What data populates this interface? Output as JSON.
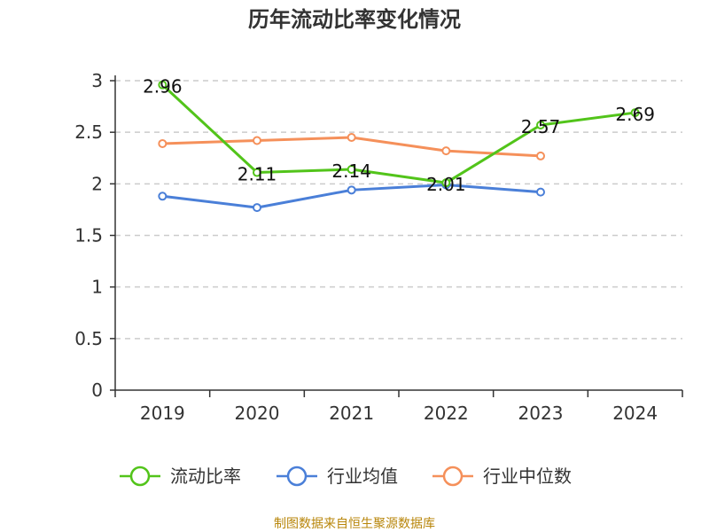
{
  "chart_data": {
    "type": "line",
    "title": "历年流动比率变化情况",
    "categories": [
      "2019",
      "2020",
      "2021",
      "2022",
      "2023",
      "2024"
    ],
    "ylim": [
      0,
      3
    ],
    "yticks": [
      "0",
      "0.5",
      "1",
      "1.5",
      "2",
      "2.5",
      "3"
    ],
    "grid": true,
    "legend_position": "bottom",
    "series": [
      {
        "name": "流动比率",
        "color": "#52c41a",
        "values": [
          2.96,
          2.11,
          2.14,
          2.01,
          2.57,
          2.69
        ],
        "labels": [
          "2.96",
          "2.11",
          "2.14",
          "2.01",
          "2.57",
          "2.69"
        ]
      },
      {
        "name": "行业均值",
        "color": "#4a7fd8",
        "values": [
          1.88,
          1.77,
          1.94,
          1.99,
          1.92,
          null
        ]
      },
      {
        "name": "行业中位数",
        "color": "#f5905a",
        "values": [
          2.39,
          2.42,
          2.45,
          2.32,
          2.27,
          null
        ]
      }
    ],
    "source": "制图数据来自恒生聚源数据库"
  }
}
